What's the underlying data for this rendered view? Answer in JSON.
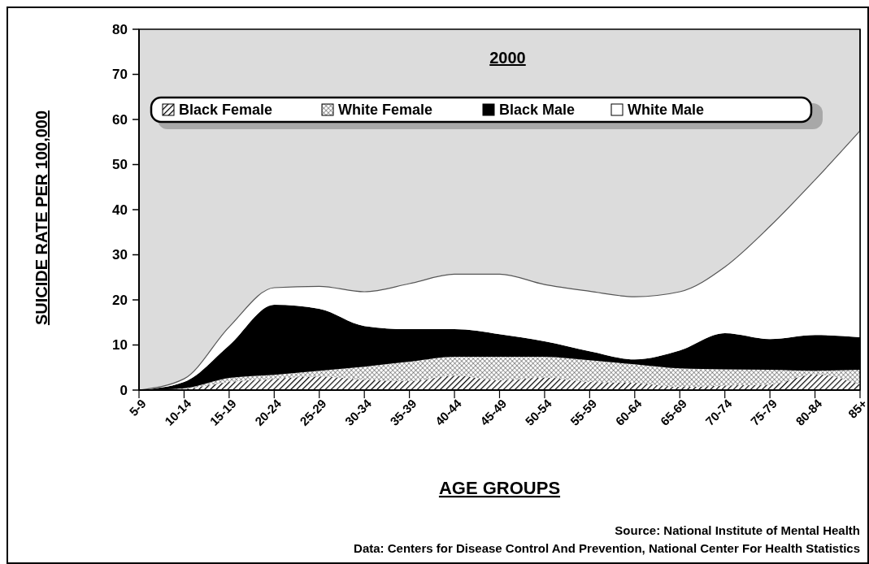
{
  "chart_data": {
    "type": "area",
    "stacked": true,
    "title": "2000",
    "xlabel": "AGE GROUPS",
    "ylabel": "SUICIDE RATE PER 100,000",
    "categories": [
      "5-9",
      "10-14",
      "15-19",
      "20-24",
      "25-29",
      "30-34",
      "35-39",
      "40-44",
      "45-49",
      "50-54",
      "55-59",
      "60-64",
      "65-69",
      "70-74",
      "75-79",
      "80-84",
      "85+"
    ],
    "series": [
      {
        "name": "Black Female",
        "color": "#000000",
        "values": [
          0,
          0.3,
          1.8,
          2.5,
          3,
          2.3,
          2,
          3.2,
          2.2,
          2.8,
          1.8,
          1.6,
          0.7,
          1,
          1.2,
          3.5,
          1.2
        ]
      },
      {
        "name": "White Female",
        "color": "#404040",
        "values": [
          0,
          0.1,
          0.9,
          0.9,
          1.3,
          2.9,
          4.3,
          4.2,
          5.2,
          4.6,
          4.8,
          4.1,
          4.1,
          3.6,
          3.3,
          0.8,
          3.3
        ]
      },
      {
        "name": "Black Male",
        "color": "#000000",
        "values": [
          0,
          1.4,
          7.2,
          15.5,
          13.7,
          9,
          7.2,
          6.1,
          5,
          3.4,
          2,
          1.1,
          4,
          8,
          6.8,
          7.9,
          7.2
        ]
      },
      {
        "name": "White Male",
        "color": "#ffffff",
        "values": [
          0,
          0.7,
          4.1,
          3.8,
          5,
          7.6,
          10.1,
          12.2,
          13.3,
          12.6,
          13.3,
          13.9,
          13,
          14.7,
          25,
          34.4,
          45.8
        ]
      }
    ],
    "ylim": [
      0,
      80
    ],
    "yticks": [
      0,
      10,
      20,
      30,
      40,
      50,
      60,
      70,
      80
    ],
    "grid": false,
    "legend": "top",
    "annotations": [
      "Source: National Institute of Mental Health",
      "Data: Centers for Disease Control And Prevention, National Center For Health Statistics"
    ]
  }
}
